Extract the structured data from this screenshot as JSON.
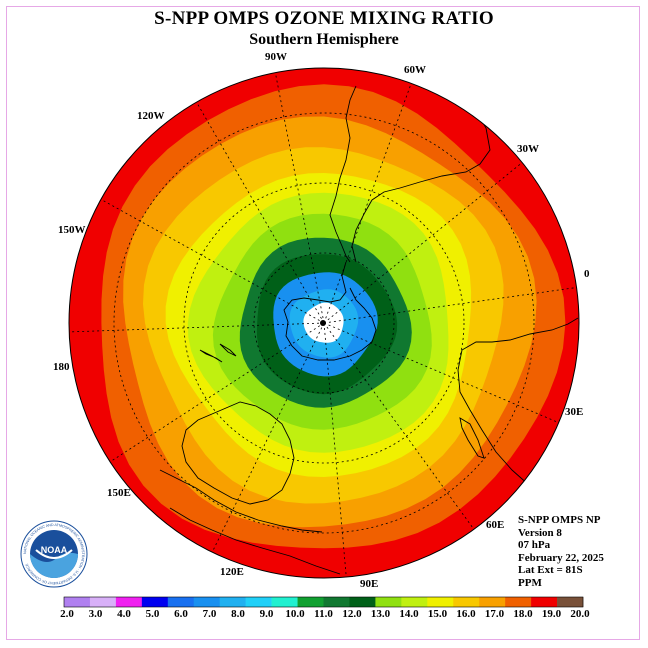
{
  "title": "S-NPP OMPS OZONE MIXING RATIO",
  "subtitle": "Southern Hemisphere",
  "longitude_labels": {
    "lon_90w": "90W",
    "lon_60w": "60W",
    "lon_30w": "30W",
    "lon_0": "0",
    "lon_30e": "30E",
    "lon_60e": "60E",
    "lon_90e": "90E",
    "lon_120e": "120E",
    "lon_150e": "150E",
    "lon_180": "180",
    "lon_150w": "150W",
    "lon_120w": "120W"
  },
  "info": {
    "instrument": "S-NPP OMPS NP",
    "version": "Version 8",
    "pressure": "07 hPa",
    "date": "February 22, 2025",
    "lat_ext": "Lat Ext = 81S",
    "units": "PPM"
  },
  "logo": {
    "text": "NOAA",
    "ring_text": "NATIONAL OCEANIC AND ATMOSPHERIC ADMINISTRATION · U.S. DEPARTMENT OF COMMERCE"
  },
  "colorbar": {
    "ticks": [
      "2.0",
      "3.0",
      "4.0",
      "5.0",
      "6.0",
      "7.0",
      "8.0",
      "9.0",
      "10.0",
      "11.0",
      "12.0",
      "13.0",
      "14.0",
      "15.0",
      "16.0",
      "17.0",
      "18.0",
      "19.0",
      "20.0"
    ],
    "colors": [
      "#b080f0",
      "#d8b0f8",
      "#f020f0",
      "#0000f0",
      "#1870f0",
      "#1890f0",
      "#20b0f0",
      "#20d0f8",
      "#20f0d0",
      "#10a030",
      "#107830",
      "#006018",
      "#90e010",
      "#c0f010",
      "#f0f000",
      "#f8c800",
      "#f8a000",
      "#f06000",
      "#f00000",
      "#785038"
    ]
  },
  "map": {
    "ring_colors": [
      "#f00000",
      "#f06000",
      "#f8a000",
      "#f8c800",
      "#f0f000",
      "#c0f010",
      "#90e010",
      "#107830",
      "#006018",
      "#1890f0",
      "#20b0f0",
      "#ffffff"
    ]
  }
}
